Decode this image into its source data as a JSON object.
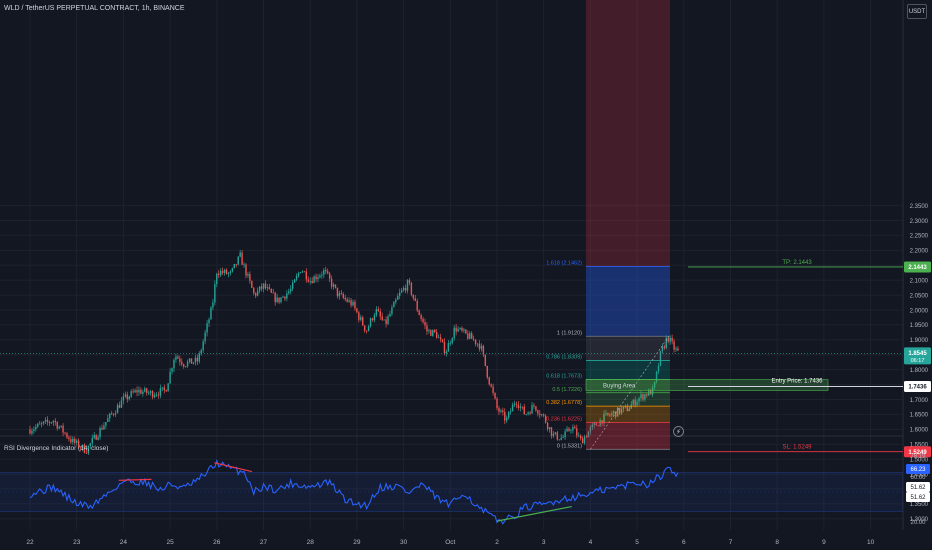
{
  "header": {
    "title": "WLD / TetherUS PERPETUAL CONTRACT, 1h, BINANCE",
    "currency_button": "USDT"
  },
  "indicator": {
    "title": "RSI Divergence Indicator (14, close)",
    "alert_icon": "lightning-icon",
    "axis_ticks": [
      "78.19",
      "66.23",
      "60.00",
      "51.62",
      "51.62",
      "20.00"
    ]
  },
  "colors": {
    "background": "#131722",
    "up": "#26a69a",
    "down": "#ef5350",
    "rsi_line": "#2962ff",
    "tp": "#4caf50",
    "sl": "#f23645",
    "fib_1618": "#2962ff"
  },
  "chart_data": {
    "type": "candlestick",
    "title": "WLD / TetherUS PERPETUAL CONTRACT, 1h, BINANCE",
    "x_tick_labels": [
      "22",
      "23",
      "24",
      "25",
      "26",
      "27",
      "28",
      "29",
      "30",
      "Oct",
      "2",
      "3",
      "4",
      "5",
      "6",
      "7",
      "8",
      "9",
      "10"
    ],
    "y_tick_labels": [
      "2.3500",
      "2.3000",
      "2.2500",
      "2.2000",
      "2.1500",
      "2.1000",
      "2.0500",
      "2.0000",
      "1.9500",
      "1.9000",
      "1.8500",
      "1.8000",
      "1.7500",
      "1.7000",
      "1.6500",
      "1.6000",
      "1.5500",
      "1.5000",
      "1.4500",
      "1.4000",
      "1.3500",
      "1.3000"
    ],
    "ylim": [
      1.28,
      2.39
    ],
    "current_price": {
      "label": "1.8545",
      "value": 1.8545,
      "countdown": "06:17"
    },
    "trend_path": [
      [
        22.0,
        1.6
      ],
      [
        22.5,
        1.63
      ],
      [
        22.9,
        1.56
      ],
      [
        23.2,
        1.53
      ],
      [
        23.6,
        1.62
      ],
      [
        24.0,
        1.7
      ],
      [
        24.3,
        1.73
      ],
      [
        24.6,
        1.72
      ],
      [
        24.9,
        1.73
      ],
      [
        25.1,
        1.85
      ],
      [
        25.3,
        1.82
      ],
      [
        25.6,
        1.83
      ],
      [
        25.9,
        2.01
      ],
      [
        26.0,
        2.13
      ],
      [
        26.3,
        2.12
      ],
      [
        26.5,
        2.18
      ],
      [
        26.8,
        2.05
      ],
      [
        27.0,
        2.08
      ],
      [
        27.3,
        2.03
      ],
      [
        27.6,
        2.07
      ],
      [
        27.8,
        2.14
      ],
      [
        28.0,
        2.1
      ],
      [
        28.3,
        2.13
      ],
      [
        28.6,
        2.05
      ],
      [
        28.9,
        2.02
      ],
      [
        29.2,
        1.93
      ],
      [
        29.4,
        2.0
      ],
      [
        29.6,
        1.95
      ],
      [
        29.9,
        2.05
      ],
      [
        30.1,
        2.09
      ],
      [
        30.3,
        2.0
      ],
      [
        30.5,
        1.93
      ],
      [
        30.7,
        1.92
      ],
      [
        30.9,
        1.86
      ],
      [
        31.1,
        1.94
      ],
      [
        31.3,
        1.92
      ],
      [
        31.5,
        1.9
      ],
      [
        31.65,
        1.88
      ],
      [
        31.8,
        1.78
      ],
      [
        32.0,
        1.67
      ],
      [
        32.2,
        1.63
      ],
      [
        32.4,
        1.7
      ],
      [
        32.6,
        1.65
      ],
      [
        32.8,
        1.68
      ],
      [
        33.0,
        1.64
      ],
      [
        33.2,
        1.58
      ],
      [
        33.4,
        1.57
      ],
      [
        33.6,
        1.61
      ],
      [
        33.8,
        1.56
      ],
      [
        34.0,
        1.6
      ],
      [
        34.3,
        1.64
      ],
      [
        34.6,
        1.66
      ],
      [
        34.8,
        1.67
      ],
      [
        35.0,
        1.7
      ],
      [
        35.2,
        1.72
      ],
      [
        35.35,
        1.73
      ],
      [
        35.5,
        1.85
      ],
      [
        35.65,
        1.91
      ],
      [
        35.8,
        1.87
      ],
      [
        35.9,
        1.855
      ]
    ],
    "trade_setup": {
      "take_profit": {
        "label": "TP: 2.1443",
        "axis_label": "2.1443",
        "value": 2.1443
      },
      "entry": {
        "label": "Entry Price: 1.7436",
        "axis_label": "1.7436",
        "value": 1.7436
      },
      "stop_loss": {
        "label": "SL: 1.5249",
        "axis_label": "1.5249",
        "value": 1.5249
      },
      "buying_area": {
        "label": "Buying Area",
        "from": 1.73,
        "to": 1.767
      }
    },
    "fibonacci": [
      {
        "label": "1.618 (2.1462)",
        "value": 2.1462
      },
      {
        "label": "1 (1.9120)",
        "value": 1.912
      },
      {
        "label": "0.786 (1.8309)",
        "value": 1.8309
      },
      {
        "label": "0.618 (1.7673)",
        "value": 1.7673
      },
      {
        "label": "0.5 (1.7226)",
        "value": 1.7226
      },
      {
        "label": "0.382 (1.6778)",
        "value": 1.6778
      },
      {
        "label": "0.236 (1.6225)",
        "value": 1.6225
      },
      {
        "label": "0 (1.5331)",
        "value": 1.5331
      }
    ],
    "rsi": {
      "ylim": [
        16,
        86
      ],
      "band": [
        30,
        70
      ],
      "current": 66.23,
      "path": [
        [
          22.0,
          48
        ],
        [
          22.5,
          55
        ],
        [
          23.0,
          38
        ],
        [
          23.3,
          35
        ],
        [
          23.6,
          46
        ],
        [
          24.0,
          61
        ],
        [
          24.5,
          60
        ],
        [
          24.8,
          52
        ],
        [
          25.0,
          58
        ],
        [
          25.3,
          54
        ],
        [
          25.6,
          62
        ],
        [
          25.9,
          75
        ],
        [
          26.0,
          80
        ],
        [
          26.3,
          74
        ],
        [
          26.6,
          70
        ],
        [
          26.8,
          50
        ],
        [
          27.0,
          56
        ],
        [
          27.3,
          52
        ],
        [
          27.6,
          59
        ],
        [
          28.0,
          55
        ],
        [
          28.4,
          60
        ],
        [
          28.8,
          40
        ],
        [
          29.2,
          36
        ],
        [
          29.5,
          55
        ],
        [
          29.9,
          56
        ],
        [
          30.1,
          49
        ],
        [
          30.4,
          58
        ],
        [
          30.7,
          44
        ],
        [
          31.0,
          36
        ],
        [
          31.3,
          50
        ],
        [
          31.6,
          33
        ],
        [
          31.8,
          28
        ],
        [
          32.0,
          20
        ],
        [
          32.3,
          23
        ],
        [
          32.6,
          34
        ],
        [
          33.0,
          37
        ],
        [
          33.4,
          43
        ],
        [
          33.8,
          46
        ],
        [
          34.2,
          51
        ],
        [
          34.6,
          55
        ],
        [
          35.0,
          60
        ],
        [
          35.2,
          58
        ],
        [
          35.4,
          64
        ],
        [
          35.55,
          66
        ],
        [
          35.65,
          80
        ],
        [
          35.8,
          70
        ],
        [
          35.9,
          66
        ]
      ],
      "divergences": [
        {
          "type": "bearish",
          "points": [
            [
              23.9,
              62
            ],
            [
              24.6,
              63
            ]
          ]
        },
        {
          "type": "bearish",
          "points": [
            [
              25.95,
              80
            ],
            [
              26.75,
              71
            ]
          ]
        },
        {
          "type": "bullish",
          "points": [
            [
              32.0,
              20
            ],
            [
              33.6,
              35
            ]
          ]
        }
      ]
    }
  }
}
